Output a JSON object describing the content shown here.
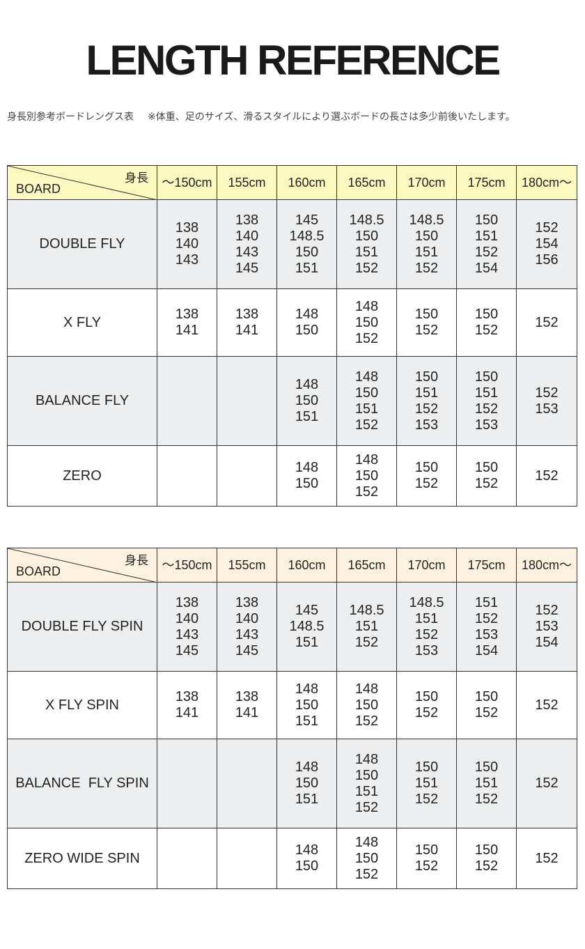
{
  "header": {
    "title": "LENGTH REFERENCE",
    "subtitle": "身長別参考ボードレングス表",
    "note": "※体重、足のサイズ、滑るスタイルにより選ぶボードの長さは多少前後いたします。"
  },
  "tables": [
    {
      "corner": {
        "height_label": "身長",
        "board_label": "BOARD"
      },
      "columns": [
        "～150cm",
        "155cm",
        "160cm",
        "165cm",
        "170cm",
        "175cm",
        "180cm～"
      ],
      "rows": [
        {
          "name": "DOUBLE FLY",
          "cells": [
            [
              138,
              140,
              143
            ],
            [
              138,
              140,
              143,
              145
            ],
            [
              145,
              148.5,
              150,
              151
            ],
            [
              148.5,
              150,
              151,
              152
            ],
            [
              148.5,
              150,
              151,
              152
            ],
            [
              150,
              151,
              152,
              154
            ],
            [
              152,
              154,
              156
            ]
          ]
        },
        {
          "name": "X FLY",
          "cells": [
            [
              138,
              141
            ],
            [
              138,
              141
            ],
            [
              148,
              150
            ],
            [
              148,
              150,
              152
            ],
            [
              150,
              152
            ],
            [
              150,
              152
            ],
            [
              152
            ]
          ]
        },
        {
          "name": "BALANCE FLY",
          "cells": [
            [],
            [],
            [
              148,
              150,
              151
            ],
            [
              148,
              150,
              151,
              152
            ],
            [
              150,
              151,
              152,
              153
            ],
            [
              150,
              151,
              152,
              153
            ],
            [
              152,
              153
            ]
          ]
        },
        {
          "name": "ZERO",
          "cells": [
            [],
            [],
            [
              148,
              150
            ],
            [
              148,
              150,
              152
            ],
            [
              150,
              152
            ],
            [
              150,
              152
            ],
            [
              152
            ]
          ]
        }
      ]
    },
    {
      "corner": {
        "height_label": "身長",
        "board_label": "BOARD"
      },
      "columns": [
        "～150cm",
        "155cm",
        "160cm",
        "165cm",
        "170cm",
        "175cm",
        "180cm～"
      ],
      "rows": [
        {
          "name": "DOUBLE FLY SPIN",
          "cells": [
            [
              138,
              140,
              143,
              145
            ],
            [
              138,
              140,
              143,
              145
            ],
            [
              145,
              148.5,
              151
            ],
            [
              148.5,
              151,
              152
            ],
            [
              148.5,
              151,
              152,
              153
            ],
            [
              151,
              152,
              153,
              154
            ],
            [
              152,
              153,
              154
            ]
          ]
        },
        {
          "name": "X FLY SPIN",
          "cells": [
            [
              138,
              141
            ],
            [
              138,
              141
            ],
            [
              148,
              150,
              151
            ],
            [
              148,
              150,
              152
            ],
            [
              150,
              152
            ],
            [
              150,
              152
            ],
            [
              152
            ]
          ]
        },
        {
          "name": "BALANCE  FLY SPIN",
          "cells": [
            [],
            [],
            [
              148,
              150,
              151
            ],
            [
              148,
              150,
              151,
              152
            ],
            [
              150,
              151,
              152
            ],
            [
              150,
              151,
              152
            ],
            [
              152
            ]
          ]
        },
        {
          "name": "ZERO WIDE SPIN",
          "cells": [
            [],
            [],
            [
              148,
              150
            ],
            [
              148,
              150,
              152
            ],
            [
              150,
              152
            ],
            [
              150,
              152
            ],
            [
              152
            ]
          ]
        }
      ]
    }
  ]
}
